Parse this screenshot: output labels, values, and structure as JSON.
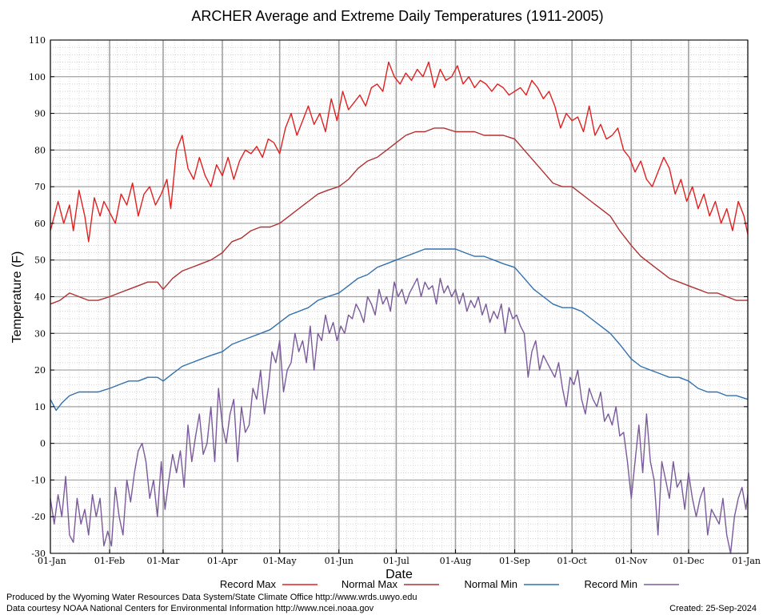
{
  "chart_data": {
    "type": "line",
    "title": "ARCHER Average and Extreme Daily Temperatures (1911-2005)",
    "xlabel": "Date",
    "ylabel": "Temperature (F)",
    "ylim": [
      -30,
      110
    ],
    "yticks": [
      -30,
      -20,
      -10,
      0,
      10,
      20,
      30,
      40,
      50,
      60,
      70,
      80,
      90,
      100,
      110
    ],
    "xlim": [
      0,
      365
    ],
    "xtick_labels": [
      "01-Jan",
      "01-Feb",
      "01-Mar",
      "01-Apr",
      "01-May",
      "01-Jun",
      "01-Jul",
      "01-Aug",
      "01-Sep",
      "01-Oct",
      "01-Nov",
      "01-Dec",
      "01-Jan"
    ],
    "xtick_days": [
      0,
      31,
      59,
      90,
      120,
      151,
      181,
      212,
      243,
      273,
      304,
      334,
      365
    ],
    "grid": true,
    "legend_position": "bottom",
    "series": [
      {
        "name": "Record Max",
        "color": "#e02020",
        "x": [
          0,
          4,
          7,
          10,
          12,
          15,
          18,
          20,
          23,
          26,
          28,
          31,
          34,
          37,
          40,
          43,
          46,
          49,
          52,
          55,
          58,
          61,
          63,
          66,
          69,
          72,
          75,
          78,
          81,
          84,
          87,
          90,
          93,
          96,
          99,
          102,
          105,
          108,
          111,
          114,
          117,
          120,
          123,
          126,
          129,
          132,
          135,
          138,
          141,
          144,
          147,
          150,
          153,
          156,
          159,
          162,
          165,
          168,
          171,
          174,
          177,
          180,
          183,
          186,
          189,
          192,
          195,
          198,
          201,
          204,
          207,
          210,
          213,
          216,
          219,
          222,
          225,
          228,
          231,
          234,
          237,
          240,
          243,
          246,
          249,
          252,
          255,
          258,
          261,
          264,
          267,
          270,
          273,
          276,
          279,
          282,
          285,
          288,
          291,
          294,
          297,
          300,
          303,
          306,
          309,
          312,
          315,
          318,
          321,
          324,
          327,
          330,
          333,
          336,
          339,
          342,
          345,
          348,
          351,
          354,
          357,
          360,
          363,
          365
        ],
        "y": [
          58,
          66,
          60,
          65,
          58,
          69,
          62,
          55,
          67,
          62,
          66,
          63,
          60,
          68,
          65,
          71,
          62,
          68,
          70,
          65,
          68,
          72,
          64,
          80,
          84,
          75,
          72,
          78,
          73,
          70,
          76,
          73,
          78,
          72,
          77,
          80,
          79,
          81,
          78,
          83,
          82,
          79,
          86,
          90,
          84,
          88,
          92,
          87,
          90,
          85,
          94,
          88,
          96,
          91,
          93,
          95,
          92,
          97,
          98,
          96,
          104,
          100,
          98,
          101,
          99,
          102,
          100,
          104,
          97,
          102,
          99,
          100,
          103,
          98,
          100,
          97,
          99,
          98,
          96,
          98,
          97,
          95,
          96,
          97,
          95,
          99,
          97,
          94,
          96,
          92,
          86,
          90,
          88,
          89,
          85,
          92,
          84,
          87,
          83,
          84,
          86,
          80,
          78,
          74,
          77,
          72,
          70,
          74,
          78,
          75,
          68,
          72,
          66,
          70,
          64,
          68,
          62,
          66,
          60,
          64,
          58,
          66,
          62,
          57
        ]
      },
      {
        "name": "Normal Max",
        "color": "#b03030",
        "x": [
          0,
          5,
          10,
          15,
          20,
          25,
          31,
          36,
          41,
          46,
          51,
          56,
          59,
          64,
          69,
          74,
          79,
          84,
          90,
          95,
          100,
          105,
          110,
          115,
          120,
          125,
          130,
          135,
          140,
          145,
          151,
          156,
          161,
          166,
          171,
          176,
          181,
          186,
          191,
          196,
          201,
          206,
          212,
          217,
          222,
          227,
          232,
          237,
          243,
          248,
          253,
          258,
          263,
          268,
          273,
          278,
          283,
          288,
          293,
          298,
          304,
          309,
          314,
          319,
          324,
          329,
          334,
          339,
          344,
          349,
          354,
          359,
          365
        ],
        "y": [
          38,
          39,
          41,
          40,
          39,
          39,
          40,
          41,
          42,
          43,
          44,
          44,
          42,
          45,
          47,
          48,
          49,
          50,
          52,
          55,
          56,
          58,
          59,
          59,
          60,
          62,
          64,
          66,
          68,
          69,
          70,
          72,
          75,
          77,
          78,
          80,
          82,
          84,
          85,
          85,
          86,
          86,
          85,
          85,
          85,
          84,
          84,
          84,
          83,
          80,
          77,
          74,
          71,
          70,
          70,
          68,
          66,
          64,
          62,
          58,
          54,
          51,
          49,
          47,
          45,
          44,
          43,
          42,
          41,
          41,
          40,
          39,
          39
        ]
      },
      {
        "name": "Normal Min",
        "color": "#3070b0",
        "x": [
          0,
          3,
          6,
          10,
          15,
          20,
          25,
          31,
          36,
          41,
          46,
          51,
          56,
          59,
          64,
          69,
          74,
          79,
          84,
          90,
          95,
          100,
          105,
          110,
          115,
          120,
          125,
          130,
          135,
          140,
          145,
          151,
          156,
          161,
          166,
          171,
          176,
          181,
          186,
          191,
          196,
          201,
          206,
          212,
          217,
          222,
          227,
          232,
          237,
          243,
          248,
          253,
          258,
          263,
          268,
          273,
          278,
          283,
          288,
          293,
          298,
          304,
          309,
          314,
          319,
          324,
          329,
          334,
          339,
          344,
          349,
          354,
          359,
          365
        ],
        "y": [
          12,
          9,
          11,
          13,
          14,
          14,
          14,
          15,
          16,
          17,
          17,
          18,
          18,
          17,
          19,
          21,
          22,
          23,
          24,
          25,
          27,
          28,
          29,
          30,
          31,
          33,
          35,
          36,
          37,
          39,
          40,
          41,
          43,
          45,
          46,
          48,
          49,
          50,
          51,
          52,
          53,
          53,
          53,
          53,
          52,
          51,
          51,
          50,
          49,
          48,
          45,
          42,
          40,
          38,
          37,
          37,
          36,
          34,
          32,
          30,
          27,
          23,
          21,
          20,
          19,
          18,
          18,
          17,
          15,
          14,
          14,
          13,
          13,
          12
        ]
      },
      {
        "name": "Record Min",
        "color": "#7a5a9a",
        "x": [
          0,
          2,
          4,
          6,
          8,
          10,
          12,
          14,
          16,
          18,
          20,
          22,
          24,
          26,
          28,
          30,
          32,
          34,
          36,
          38,
          40,
          42,
          44,
          46,
          48,
          50,
          52,
          54,
          56,
          58,
          60,
          62,
          64,
          66,
          68,
          70,
          72,
          74,
          76,
          78,
          80,
          82,
          84,
          86,
          88,
          90,
          92,
          94,
          96,
          98,
          100,
          102,
          104,
          106,
          108,
          110,
          112,
          114,
          116,
          118,
          120,
          122,
          124,
          126,
          128,
          130,
          132,
          134,
          136,
          138,
          140,
          142,
          144,
          146,
          148,
          150,
          152,
          154,
          156,
          158,
          160,
          162,
          164,
          166,
          168,
          170,
          172,
          174,
          176,
          178,
          180,
          182,
          184,
          186,
          188,
          190,
          192,
          194,
          196,
          198,
          200,
          202,
          204,
          206,
          208,
          210,
          212,
          214,
          216,
          218,
          220,
          222,
          224,
          226,
          228,
          230,
          232,
          234,
          236,
          238,
          240,
          242,
          244,
          246,
          248,
          250,
          252,
          254,
          256,
          258,
          260,
          262,
          264,
          266,
          268,
          270,
          272,
          274,
          276,
          278,
          280,
          282,
          284,
          286,
          288,
          290,
          292,
          294,
          296,
          298,
          300,
          302,
          304,
          306,
          308,
          310,
          312,
          314,
          316,
          318,
          320,
          322,
          324,
          326,
          328,
          330,
          332,
          334,
          336,
          338,
          340,
          342,
          344,
          346,
          348,
          350,
          352,
          354,
          356,
          358,
          360,
          362,
          364,
          365
        ],
        "y": [
          -15,
          -22,
          -14,
          -20,
          -9,
          -25,
          -27,
          -15,
          -22,
          -18,
          -25,
          -14,
          -20,
          -15,
          -28,
          -24,
          -28,
          -12,
          -20,
          -25,
          -10,
          -16,
          -8,
          -2,
          0,
          -5,
          -15,
          -10,
          -20,
          -5,
          -18,
          -10,
          -3,
          -8,
          -2,
          -12,
          5,
          -5,
          2,
          8,
          -3,
          0,
          10,
          -5,
          15,
          5,
          0,
          8,
          12,
          -5,
          10,
          3,
          5,
          15,
          12,
          20,
          8,
          15,
          25,
          22,
          28,
          14,
          20,
          22,
          30,
          25,
          28,
          22,
          32,
          20,
          30,
          28,
          35,
          30,
          33,
          28,
          32,
          30,
          35,
          34,
          38,
          36,
          33,
          40,
          38,
          35,
          42,
          38,
          40,
          36,
          44,
          40,
          42,
          38,
          41,
          43,
          45,
          40,
          44,
          42,
          43,
          38,
          45,
          41,
          43,
          40,
          42,
          38,
          41,
          36,
          39,
          37,
          40,
          35,
          38,
          33,
          36,
          34,
          38,
          30,
          37,
          34,
          35,
          32,
          30,
          18,
          25,
          28,
          20,
          24,
          22,
          20,
          18,
          22,
          15,
          10,
          18,
          16,
          20,
          12,
          8,
          15,
          12,
          10,
          14,
          6,
          8,
          5,
          10,
          2,
          3,
          -5,
          -15,
          -5,
          5,
          -8,
          8,
          -5,
          -10,
          -25,
          -5,
          -10,
          -15,
          -5,
          -12,
          -10,
          -18,
          -8,
          -15,
          -20,
          -15,
          -12,
          -25,
          -18,
          -20,
          -22,
          -15,
          -25,
          -30,
          -20,
          -15,
          -12,
          -18,
          -14
        ]
      }
    ]
  },
  "footer": {
    "line1": "Produced by the Wyoming Water Resources Data System/State Climate Office http://www.wrds.uwyo.edu",
    "line2": "Data courtesy NOAA National Centers for Environmental Information http://www.ncei.noaa.gov",
    "created": "Created:  25-Sep-2024"
  }
}
